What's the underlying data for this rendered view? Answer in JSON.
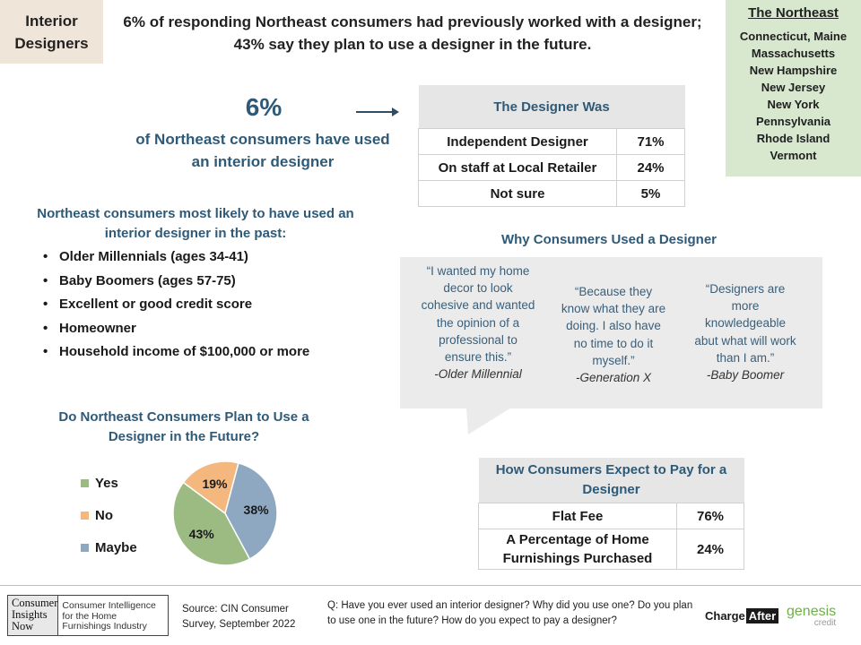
{
  "tag": {
    "line1": "Interior",
    "line2": "Designers"
  },
  "headline": "6% of responding Northeast consumers had previously worked with a designer; 43% say they plan to use a designer in the future.",
  "region": {
    "title": "The Northeast",
    "states": [
      "Connecticut, Maine",
      "Massachusetts",
      "New Hampshire",
      "New Jersey",
      "New York",
      "Pennsylvania",
      "Rhode Island",
      "Vermont"
    ]
  },
  "stat": {
    "value": "6%",
    "text": "of Northeast consumers have used an interior designer"
  },
  "designer_was": {
    "title": "The Designer Was",
    "rows": [
      {
        "label": "Independent Designer",
        "value": "71%"
      },
      {
        "label": "On staff at Local Retailer",
        "value": "24%"
      },
      {
        "label": "Not sure",
        "value": "5%"
      }
    ]
  },
  "likely": {
    "title": "Northeast consumers most likely to have used an interior designer in the past:",
    "items": [
      "Older Millennials (ages 34-41)",
      "Baby Boomers (ages 57-75)",
      "Excellent or good credit score",
      "Homeowner",
      "Household income of $100,000 or more"
    ]
  },
  "why": {
    "title": "Why Consumers Used a Designer",
    "quotes": [
      {
        "text": "“I wanted my home decor to look cohesive and wanted the opinion of a professional to ensure this.”",
        "who": "-Older Millennial"
      },
      {
        "text": "“Because they know what they are doing. I also have no time to do it myself.”",
        "who": "-Generation X"
      },
      {
        "text": "“Designers are more knowledgeable abut what will work than I am.”",
        "who": "-Baby Boomer"
      }
    ]
  },
  "pay": {
    "title": "How Consumers Expect to Pay for a Designer",
    "rows": [
      {
        "label": "Flat Fee",
        "value": "76%"
      },
      {
        "label": "A Percentage of Home Furnishings Purchased",
        "value": "24%"
      }
    ]
  },
  "chart_data": {
    "type": "pie",
    "title": "Do Northeast Consumers Plan to Use a Designer in the Future?",
    "categories": [
      "Yes",
      "No",
      "Maybe"
    ],
    "values": [
      43,
      19,
      38
    ],
    "labels": [
      "43%",
      "19%",
      "38%"
    ],
    "colors": [
      "#9bbb83",
      "#f4b77e",
      "#8ea8c1"
    ],
    "legend": "left"
  },
  "footer": {
    "logo_left": "Consumer Insights Now",
    "logo_right": "Consumer Intelligence for the Home Furnishings Industry",
    "source": "Source: CIN Consumer Survey, September 2022",
    "question": "Q: Have you ever used an interior designer? Why did you use one? Do you plan to use one in the future? How do you expect to pay a designer?",
    "brand1_a": "Charge",
    "brand1_b": "After",
    "brand2_a": "genesis",
    "brand2_b": "credit"
  }
}
